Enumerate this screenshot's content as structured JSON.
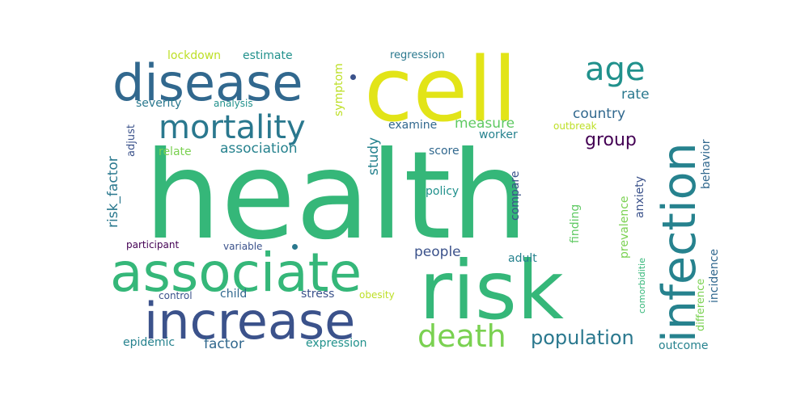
{
  "words": [
    {
      "text": "health",
      "color": "#35b779"
    },
    {
      "text": "cell",
      "color": "#e2e418"
    },
    {
      "text": "risk",
      "color": "#35b779"
    },
    {
      "text": "associate",
      "color": "#35b779"
    },
    {
      "text": "disease",
      "color": "#31688e"
    },
    {
      "text": "infection",
      "color": "#26828e"
    },
    {
      "text": "increase",
      "color": "#3b528b"
    },
    {
      "text": "mortality",
      "color": "#2a788e"
    },
    {
      "text": "death",
      "color": "#7ad151"
    },
    {
      "text": "age",
      "color": "#21918c"
    },
    {
      "text": "population",
      "color": "#2a788e"
    },
    {
      "text": "group",
      "color": "#440154"
    },
    {
      "text": "association",
      "color": "#26828e"
    },
    {
      "text": "factor",
      "color": "#31688e"
    },
    {
      "text": "people",
      "color": "#3b528b"
    },
    {
      "text": "risk_factor",
      "color": "#2a788e"
    },
    {
      "text": "country",
      "color": "#31688e"
    },
    {
      "text": "rate",
      "color": "#2a788e"
    },
    {
      "text": "measure",
      "color": "#5ec962"
    },
    {
      "text": "study",
      "color": "#26828e"
    },
    {
      "text": "lockdown",
      "color": "#bddf26"
    },
    {
      "text": "estimate",
      "color": "#21918c"
    },
    {
      "text": "symptom",
      "color": "#bddf26"
    },
    {
      "text": "regression",
      "color": "#2a788e"
    },
    {
      "text": "severity",
      "color": "#2a788e"
    },
    {
      "text": "analysis",
      "color": "#21918c"
    },
    {
      "text": "adjust",
      "color": "#3b528b"
    },
    {
      "text": "examine",
      "color": "#31688e"
    },
    {
      "text": "outbreak",
      "color": "#bddf26"
    },
    {
      "text": "behavior",
      "color": "#31688e"
    },
    {
      "text": "relate",
      "color": "#7ad151"
    },
    {
      "text": "worker",
      "color": "#26828e"
    },
    {
      "text": "score",
      "color": "#31688e"
    },
    {
      "text": "policy",
      "color": "#21918c"
    },
    {
      "text": "compare",
      "color": "#3b528b"
    },
    {
      "text": "anxiety",
      "color": "#3b528b"
    },
    {
      "text": "prevalence",
      "color": "#7ad151"
    },
    {
      "text": "finding",
      "color": "#5ec962"
    },
    {
      "text": "participant",
      "color": "#440154"
    },
    {
      "text": "variable",
      "color": "#3b528b"
    },
    {
      "text": "adult",
      "color": "#26828e"
    },
    {
      "text": "child",
      "color": "#31688e"
    },
    {
      "text": "stress",
      "color": "#3b528b"
    },
    {
      "text": "obesity",
      "color": "#bddf26"
    },
    {
      "text": "control",
      "color": "#3b528b"
    },
    {
      "text": "comorbiditie",
      "color": "#35b779"
    },
    {
      "text": "difference",
      "color": "#7ad151"
    },
    {
      "text": "incidence",
      "color": "#31688e"
    },
    {
      "text": "epidemic",
      "color": "#26828e"
    },
    {
      "text": "expression",
      "color": "#21918c"
    },
    {
      "text": "outcome",
      "color": "#26828e"
    }
  ],
  "dots": [
    {
      "color": "#3b528b"
    },
    {
      "color": "#2a788e"
    }
  ]
}
